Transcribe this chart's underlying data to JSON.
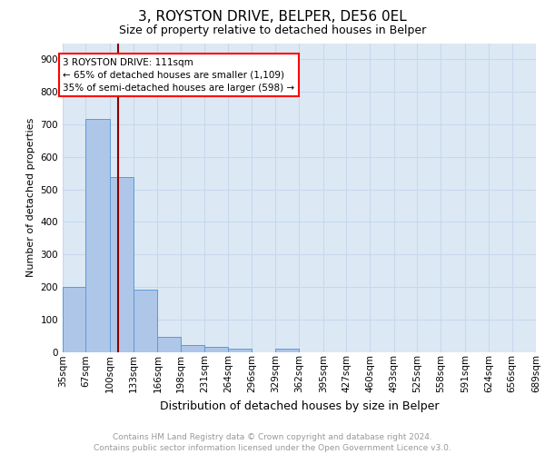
{
  "title1": "3, ROYSTON DRIVE, BELPER, DE56 0EL",
  "title2": "Size of property relative to detached houses in Belper",
  "xlabel": "Distribution of detached houses by size in Belper",
  "ylabel": "Number of detached properties",
  "footer1": "Contains HM Land Registry data © Crown copyright and database right 2024.",
  "footer2": "Contains public sector information licensed under the Open Government Licence v3.0.",
  "bins": [
    35,
    67,
    100,
    133,
    166,
    198,
    231,
    264,
    296,
    329,
    362,
    395,
    427,
    460,
    493,
    525,
    558,
    591,
    624,
    656,
    689
  ],
  "bin_labels": [
    "35sqm",
    "67sqm",
    "100sqm",
    "133sqm",
    "166sqm",
    "198sqm",
    "231sqm",
    "264sqm",
    "296sqm",
    "329sqm",
    "362sqm",
    "395sqm",
    "427sqm",
    "460sqm",
    "493sqm",
    "525sqm",
    "558sqm",
    "591sqm",
    "624sqm",
    "656sqm",
    "689sqm"
  ],
  "counts": [
    200,
    717,
    537,
    192,
    47,
    21,
    14,
    11,
    0,
    10,
    0,
    0,
    0,
    0,
    0,
    0,
    0,
    0,
    0,
    0
  ],
  "bar_color": "#aec6e8",
  "bar_edge_color": "#5b9bd5",
  "background_color": "#dce9f5",
  "grid_color": "#c8d8ec",
  "red_line_x": 111,
  "annotation_title": "3 ROYSTON DRIVE: 111sqm",
  "annotation_line1": "← 65% of detached houses are smaller (1,109)",
  "annotation_line2": "35% of semi-detached houses are larger (598) →",
  "ylim": [
    0,
    950
  ],
  "yticks": [
    0,
    100,
    200,
    300,
    400,
    500,
    600,
    700,
    800,
    900
  ],
  "title1_fontsize": 11,
  "title2_fontsize": 9,
  "ylabel_fontsize": 8,
  "xlabel_fontsize": 9,
  "tick_fontsize": 7.5,
  "footer_fontsize": 6.5
}
